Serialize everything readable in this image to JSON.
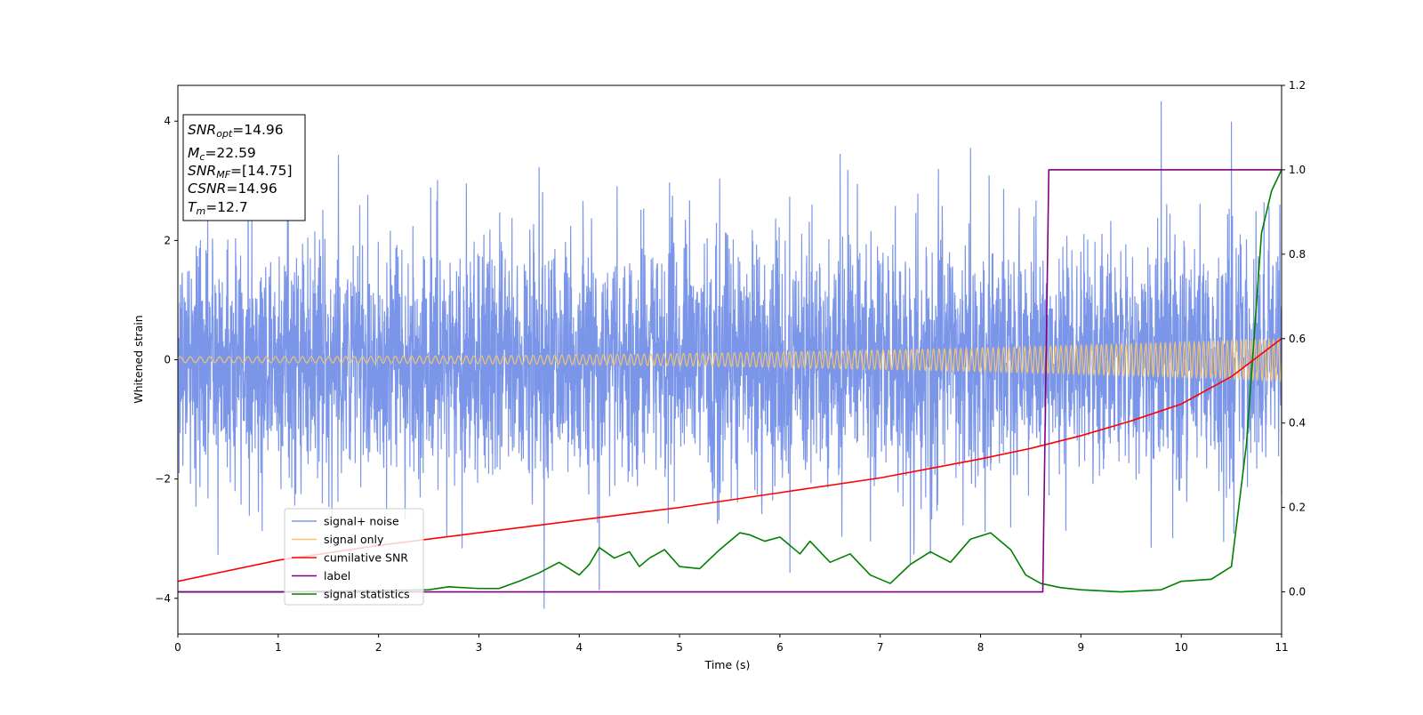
{
  "chart_data": {
    "type": "line",
    "xlabel": "Time (s)",
    "ylabel": "Whitened strain",
    "xlim": [
      0,
      11
    ],
    "ylim": [
      -4.6,
      4.6
    ],
    "y2lim": [
      -0.1,
      1.2
    ],
    "grid": false,
    "legend_position": "lower-left",
    "x_ticks": [
      "0",
      "1",
      "2",
      "3",
      "4",
      "5",
      "6",
      "7",
      "8",
      "9",
      "10",
      "11"
    ],
    "y_ticks": [
      "4",
      "2",
      "0",
      "−2",
      "−4"
    ],
    "y2_ticks": [
      "1.2",
      "1.0",
      "0.8",
      "0.6",
      "0.4",
      "0.2",
      "0.0"
    ],
    "info_box": {
      "snr_opt": {
        "label": "SNR",
        "sub": "opt",
        "value": "=14.96"
      },
      "mc": {
        "label": "M",
        "sub": "c",
        "value": "=22.59"
      },
      "snr_mf": {
        "label": "SNR",
        "sub": "MF",
        "value": "=[14.75]"
      },
      "csnr": {
        "label": "CSNR",
        "value": "=14.96"
      },
      "tm": {
        "label": "T",
        "sub": "m",
        "value": "=12.7"
      }
    },
    "series": [
      {
        "name": "signal+ noise",
        "color": "#7b96e8",
        "axis": "left",
        "noise_band_sigma": 1.0,
        "peak_values": {
          "x": [
            1.1,
            1.6,
            3.6,
            5.4,
            6.6,
            7.9,
            9.8,
            10.5
          ],
          "y": [
            3.0,
            3.4,
            3.2,
            3.1,
            3.6,
            3.5,
            4.15,
            3.75
          ]
        },
        "trough_values": {
          "x": [
            0.4,
            3.65,
            4.2,
            6.1,
            7.3,
            9.7
          ],
          "y": [
            -3.3,
            -4.1,
            -3.8,
            -3.7,
            -3.5,
            -3.4
          ]
        }
      },
      {
        "name": "signal only",
        "color": "#f5c470",
        "axis": "left",
        "amp_start": 0.05,
        "amp_end": 0.35,
        "freq_start_hz": 10,
        "freq_end_hz": 22
      },
      {
        "name": "cumilative SNR",
        "color": "#ff0000",
        "axis": "right",
        "x": [
          0,
          1,
          2,
          3,
          4,
          5,
          6,
          7,
          8,
          8.5,
          9,
          9.5,
          10,
          10.5,
          11
        ],
        "y": [
          0.025,
          0.075,
          0.11,
          0.14,
          0.17,
          0.2,
          0.235,
          0.27,
          0.315,
          0.34,
          0.37,
          0.405,
          0.445,
          0.51,
          0.6
        ]
      },
      {
        "name": "label",
        "color": "#800080",
        "axis": "right",
        "x": [
          0,
          8.62,
          8.68,
          11
        ],
        "y": [
          0,
          0,
          1,
          1
        ]
      },
      {
        "name": "signal statistics",
        "color": "#008000",
        "axis": "right",
        "x": [
          0,
          1,
          2,
          2.5,
          2.7,
          3,
          3.2,
          3.4,
          3.6,
          3.8,
          3.9,
          4.0,
          4.1,
          4.2,
          4.35,
          4.5,
          4.6,
          4.7,
          4.85,
          5.0,
          5.2,
          5.4,
          5.6,
          5.7,
          5.85,
          6.0,
          6.2,
          6.3,
          6.5,
          6.7,
          6.9,
          7.1,
          7.3,
          7.5,
          7.7,
          7.9,
          8.1,
          8.3,
          8.45,
          8.6,
          8.8,
          9.0,
          9.4,
          9.8,
          10.0,
          10.3,
          10.5,
          10.65,
          10.8,
          10.9,
          11
        ],
        "y": [
          0,
          0.0,
          0.003,
          0.005,
          0.012,
          0.008,
          0.008,
          0.025,
          0.045,
          0.07,
          0.055,
          0.04,
          0.065,
          0.105,
          0.08,
          0.095,
          0.06,
          0.08,
          0.1,
          0.06,
          0.055,
          0.1,
          0.14,
          0.135,
          0.12,
          0.13,
          0.09,
          0.12,
          0.07,
          0.09,
          0.04,
          0.02,
          0.065,
          0.095,
          0.07,
          0.125,
          0.14,
          0.1,
          0.04,
          0.02,
          0.01,
          0.005,
          0.0,
          0.005,
          0.025,
          0.03,
          0.06,
          0.35,
          0.85,
          0.95,
          1.0
        ]
      }
    ]
  }
}
